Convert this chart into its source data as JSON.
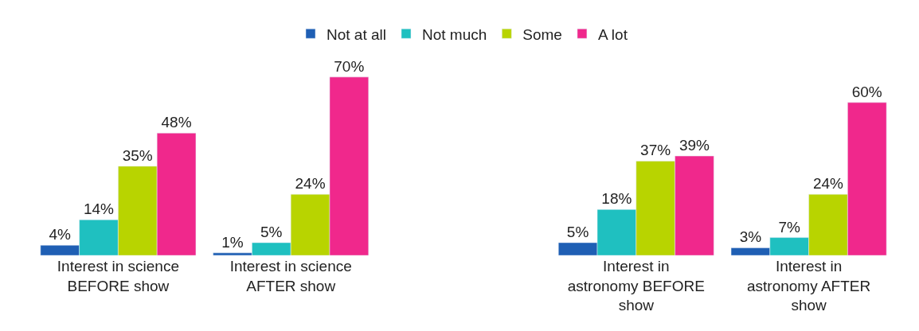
{
  "chart_data": {
    "type": "bar",
    "categories": [
      "Interest in science BEFORE show",
      "Interest in science AFTER show",
      null,
      "Interest in astronomy BEFORE show",
      "Interest in astronomy AFTER show"
    ],
    "series": [
      {
        "name": "Not at all",
        "color": "#1f5fb4",
        "values": [
          4,
          1,
          null,
          5,
          3
        ],
        "value_labels": [
          "4%",
          "1%",
          null,
          "5%",
          "3%"
        ]
      },
      {
        "name": "Not much",
        "color": "#1fc0c0",
        "values": [
          14,
          5,
          null,
          18,
          7
        ],
        "value_labels": [
          "14%",
          "5%",
          null,
          "18%",
          "7%"
        ]
      },
      {
        "name": "Some",
        "color": "#b8d400",
        "values": [
          35,
          24,
          null,
          37,
          24
        ],
        "value_labels": [
          "35%",
          "24%",
          null,
          "37%",
          "24%"
        ]
      },
      {
        "name": "A lot",
        "color": "#f0288c",
        "values": [
          48,
          70,
          null,
          39,
          60
        ],
        "value_labels": [
          "48%",
          "70%",
          null,
          "39%",
          "60%"
        ]
      }
    ],
    "legend": "top"
  }
}
